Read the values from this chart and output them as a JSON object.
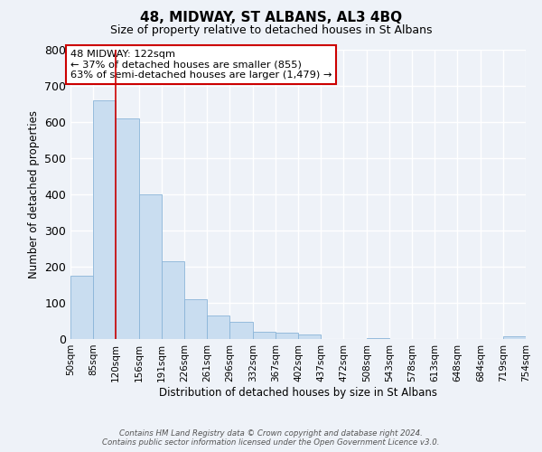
{
  "title": "48, MIDWAY, ST ALBANS, AL3 4BQ",
  "subtitle": "Size of property relative to detached houses in St Albans",
  "xlabel": "Distribution of detached houses by size in St Albans",
  "ylabel": "Number of detached properties",
  "bar_color": "#c9ddf0",
  "bar_edge_color": "#8ab4d8",
  "background_color": "#eef2f8",
  "grid_color": "#ffffff",
  "bin_edges": [
    50,
    85,
    120,
    156,
    191,
    226,
    261,
    296,
    332,
    367,
    402,
    437,
    472,
    508,
    543,
    578,
    613,
    648,
    684,
    719,
    754
  ],
  "bin_labels": [
    "50sqm",
    "85sqm",
    "120sqm",
    "156sqm",
    "191sqm",
    "226sqm",
    "261sqm",
    "296sqm",
    "332sqm",
    "367sqm",
    "402sqm",
    "437sqm",
    "472sqm",
    "508sqm",
    "543sqm",
    "578sqm",
    "613sqm",
    "648sqm",
    "684sqm",
    "719sqm",
    "754sqm"
  ],
  "bar_heights": [
    175,
    660,
    610,
    400,
    215,
    110,
    65,
    48,
    20,
    17,
    12,
    1,
    1,
    2,
    1,
    0,
    0,
    0,
    0,
    8
  ],
  "ylim": [
    0,
    800
  ],
  "yticks": [
    0,
    100,
    200,
    300,
    400,
    500,
    600,
    700,
    800
  ],
  "vline_x": 120,
  "annotation_text": "48 MIDWAY: 122sqm\n← 37% of detached houses are smaller (855)\n63% of semi-detached houses are larger (1,479) →",
  "annotation_box_color": "#ffffff",
  "annotation_box_edge_color": "#cc0000",
  "footer_line1": "Contains HM Land Registry data © Crown copyright and database right 2024.",
  "footer_line2": "Contains public sector information licensed under the Open Government Licence v3.0."
}
